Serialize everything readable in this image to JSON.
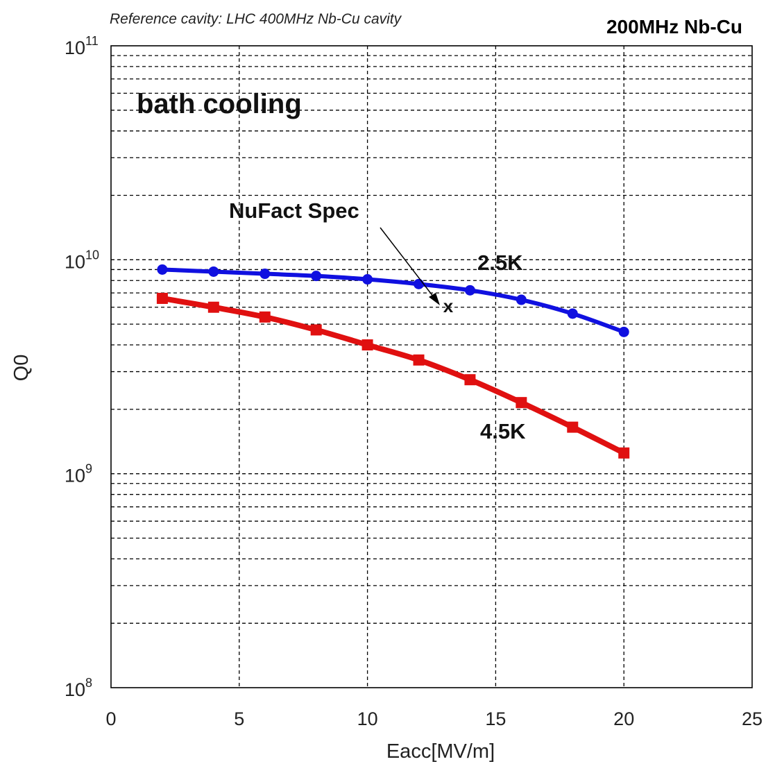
{
  "chart_data": {
    "type": "line",
    "subtitle": "Reference cavity: LHC 400MHz Nb-Cu cavity",
    "title": "200MHz Nb-Cu",
    "xlabel": "Eacc[MV/m]",
    "ylabel": "Q0",
    "xlim": [
      0,
      25
    ],
    "ylim": [
      100000000.0,
      100000000000.0
    ],
    "yscale": "log",
    "grid": true,
    "x_ticks": [
      "0",
      "5",
      "10",
      "15",
      "20",
      "25"
    ],
    "y_ticks": [
      {
        "base": "10",
        "exp": "8"
      },
      {
        "base": "10",
        "exp": "9"
      },
      {
        "base": "10",
        "exp": "10"
      },
      {
        "base": "10",
        "exp": "11"
      }
    ],
    "series": [
      {
        "name": "2.5K",
        "color": "#1010e0",
        "marker": "circle",
        "x": [
          2,
          4,
          6,
          8,
          10,
          12,
          14,
          16,
          18,
          20
        ],
        "y": [
          9000000000.0,
          8800000000.0,
          8600000000.0,
          8400000000.0,
          8100000000.0,
          7700000000.0,
          7200000000.0,
          6500000000.0,
          5600000000.0,
          4600000000.0
        ]
      },
      {
        "name": "4.5K",
        "color": "#e01010",
        "marker": "square",
        "x": [
          2,
          4,
          6,
          8,
          10,
          12,
          14,
          16,
          18,
          20
        ],
        "y": [
          6600000000.0,
          6000000000.0,
          5400000000.0,
          4700000000.0,
          4000000000.0,
          3400000000.0,
          2750000000.0,
          2150000000.0,
          1650000000.0,
          1250000000.0
        ]
      }
    ],
    "annotations": {
      "bath_cooling": "bath cooling",
      "nufact_spec": "NuFact Spec",
      "spec_marker": "x",
      "spec_point": {
        "x": 13,
        "y": 5900000000.0
      }
    }
  }
}
